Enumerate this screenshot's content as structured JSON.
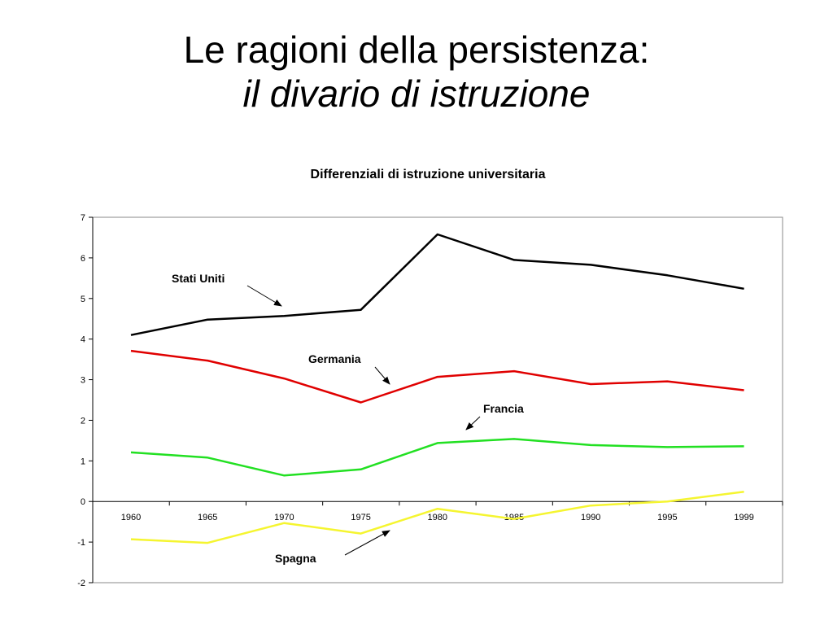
{
  "slide": {
    "title": "Le ragioni della persistenza:",
    "subtitle": "il divario di istruzione"
  },
  "chart_data": {
    "type": "line",
    "title": "Differenziali di istruzione universitaria",
    "xlabel": "",
    "ylabel": "",
    "categories": [
      "1960",
      "1965",
      "1970",
      "1975",
      "1980",
      "1985",
      "1990",
      "1995",
      "1999"
    ],
    "ylim": [
      -2,
      7
    ],
    "yticks": [
      -2,
      -1,
      0,
      1,
      2,
      3,
      4,
      5,
      6,
      7
    ],
    "grid": false,
    "legend": "none",
    "series": [
      {
        "name": "Stati Uniti",
        "color": "#000000",
        "values": [
          4.1,
          4.48,
          4.57,
          4.72,
          6.58,
          5.95,
          5.83,
          5.57,
          5.24
        ]
      },
      {
        "name": "Germania",
        "color": "#e00000",
        "values": [
          3.71,
          3.47,
          3.03,
          2.44,
          3.07,
          3.21,
          2.89,
          2.96,
          2.74
        ]
      },
      {
        "name": "Francia",
        "color": "#22e022",
        "values": [
          1.21,
          1.08,
          0.64,
          0.79,
          1.44,
          1.54,
          1.39,
          1.34,
          1.36
        ]
      },
      {
        "name": "Spagna",
        "color": "#f5f530",
        "values": [
          -0.93,
          -1.02,
          -0.53,
          -0.79,
          -0.18,
          -0.43,
          -0.1,
          0.0,
          0.24
        ]
      }
    ]
  }
}
